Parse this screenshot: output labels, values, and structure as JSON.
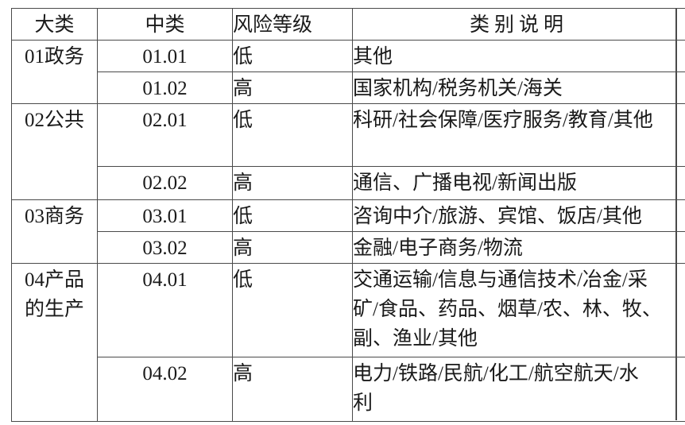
{
  "colors": {
    "background": "#ffffff",
    "text": "#1a1a1a",
    "border": "#4a4a4a"
  },
  "table": {
    "columns": [
      "大类",
      "中类",
      "风险等级",
      "类别说明"
    ],
    "groups": [
      {
        "major": "01政务",
        "rows": [
          {
            "code": "01.01",
            "risk": "低",
            "desc": "其他"
          },
          {
            "code": "01.02",
            "risk": "高",
            "desc": "国家机构/税务机关/海关"
          }
        ]
      },
      {
        "major": "02公共",
        "rows": [
          {
            "code": "02.01",
            "risk": "低",
            "desc": "科研/社会保障/医疗服务/教育/其他"
          },
          {
            "code": "02.02",
            "risk": "高",
            "desc": "通信、广播电视/新闻出版"
          }
        ]
      },
      {
        "major": "03商务",
        "rows": [
          {
            "code": "03.01",
            "risk": "低",
            "desc": "咨询中介/旅游、宾馆、饭店/其他"
          },
          {
            "code": "03.02",
            "risk": "高",
            "desc": "金融/电子商务/物流"
          }
        ]
      },
      {
        "major": "04产品\n的生产",
        "rows": [
          {
            "code": "04.01",
            "risk": "低",
            "desc": "交通运输/信息与通信技术/冶金/采\n矿/食品、药品、烟草/农、林、牧、\n副、渔业/其他"
          },
          {
            "code": "04.02",
            "risk": "高",
            "desc": "电力/铁路/民航/化工/航空航天/水\n利"
          }
        ]
      }
    ]
  }
}
